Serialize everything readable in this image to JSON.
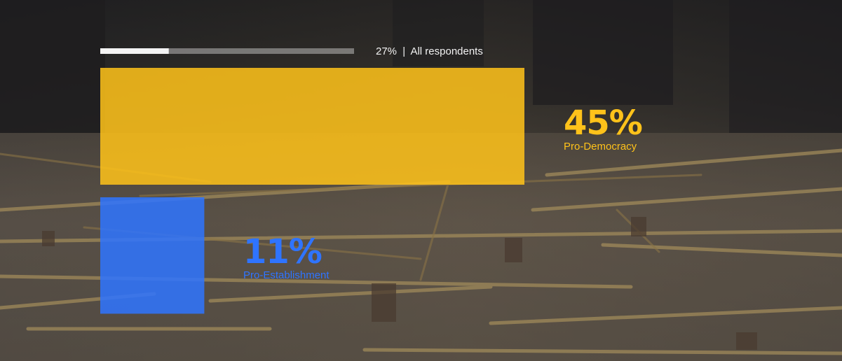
{
  "chart_data": {
    "type": "bar",
    "orientation": "area-blocks",
    "reference": {
      "value": 27,
      "label_value": "27%",
      "separator": "|",
      "label_text": "All respondents"
    },
    "series": [
      {
        "name": "Pro-Democracy",
        "value": 45,
        "value_label": "45%",
        "color": "#ffc21a"
      },
      {
        "name": "Pro-Establishment",
        "value": 11,
        "value_label": "11%",
        "color": "#2f74ff"
      }
    ]
  }
}
